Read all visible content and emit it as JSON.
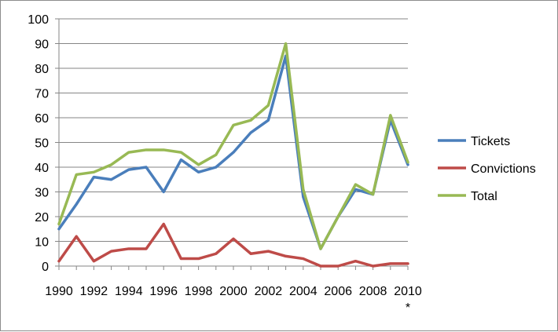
{
  "chart_data": {
    "type": "line",
    "title": "",
    "xlabel": "",
    "ylabel": "",
    "ylim": [
      0,
      100
    ],
    "yticks": [
      "0",
      "10",
      "20",
      "30",
      "40",
      "50",
      "60",
      "70",
      "80",
      "90",
      "100"
    ],
    "x_tick_labels": [
      "1990",
      "1992",
      "1994",
      "1996",
      "1998",
      "2000",
      "2002",
      "2004",
      "2006",
      "2008",
      "2010"
    ],
    "x_tick_footnote": "*",
    "x": [
      1990,
      1991,
      1992,
      1993,
      1994,
      1995,
      1996,
      1997,
      1998,
      1999,
      2000,
      2001,
      2002,
      2003,
      2004,
      2005,
      2006,
      2007,
      2008,
      2009,
      2010
    ],
    "series": [
      {
        "name": "Tickets",
        "color": "#4a7ebb",
        "values": [
          15,
          25,
          36,
          35,
          39,
          40,
          30,
          43,
          38,
          40,
          46,
          54,
          59,
          85,
          28,
          7,
          20,
          31,
          29,
          59,
          41
        ]
      },
      {
        "name": "Convictions",
        "color": "#be4b48",
        "values": [
          2,
          12,
          2,
          6,
          7,
          7,
          17,
          3,
          3,
          5,
          11,
          5,
          6,
          4,
          3,
          0,
          0,
          2,
          0,
          1,
          1
        ]
      },
      {
        "name": "Total",
        "color": "#98b954",
        "values": [
          17,
          37,
          38,
          41,
          46,
          47,
          47,
          46,
          41,
          45,
          57,
          59,
          65,
          90,
          31,
          7,
          20,
          33,
          29,
          61,
          42
        ]
      }
    ],
    "grid": true,
    "legend_position": "right"
  }
}
